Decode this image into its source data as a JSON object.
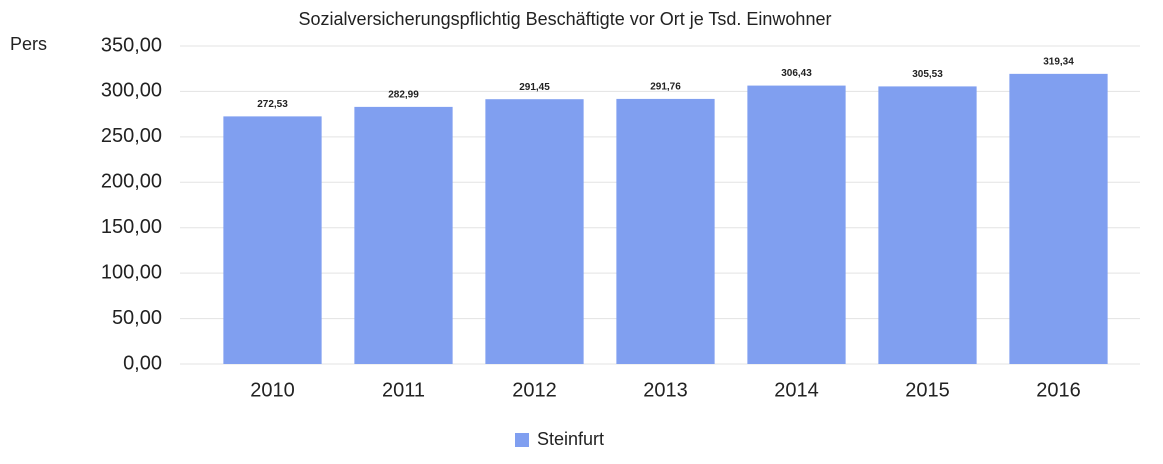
{
  "chart_data": {
    "type": "bar",
    "title": "Sozialversicherungspflichtig Beschäftigte vor Ort je Tsd. Einwohner",
    "y_label": "Pers",
    "categories": [
      "2010",
      "2011",
      "2012",
      "2013",
      "2014",
      "2015",
      "2016"
    ],
    "series": [
      {
        "name": "Steinfurt",
        "color": "#809ff0",
        "values": [
          272.53,
          282.99,
          291.45,
          291.76,
          306.43,
          305.53,
          319.34
        ],
        "value_labels": [
          "272,53",
          "282,99",
          "291,45",
          "291,76",
          "306,43",
          "305,53",
          "319,34"
        ]
      }
    ],
    "ylim": [
      0,
      350
    ],
    "yticks": [
      {
        "value": 0,
        "label": "0,00"
      },
      {
        "value": 50,
        "label": "50,00"
      },
      {
        "value": 100,
        "label": "100,00"
      },
      {
        "value": 150,
        "label": "150,00"
      },
      {
        "value": 200,
        "label": "200,00"
      },
      {
        "value": 250,
        "label": "250,00"
      },
      {
        "value": 300,
        "label": "300,00"
      },
      {
        "value": 350,
        "label": "350,00"
      }
    ],
    "grid": true,
    "legend": "bottom"
  }
}
